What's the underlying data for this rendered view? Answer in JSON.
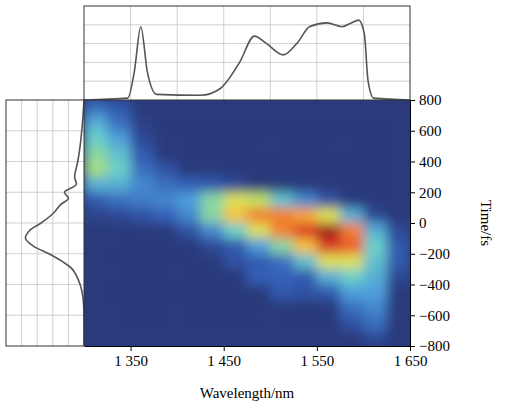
{
  "chart_data": [
    {
      "type": "heatmap",
      "xlabel": "Wavelength/nm",
      "ylabel": "Time/fs",
      "x": [
        1312.5,
        1337.5,
        1362.5,
        1387.5,
        1412.5,
        1437.5,
        1462.5,
        1487.5,
        1512.5,
        1537.5,
        1562.5,
        1587.5,
        1612.5,
        1637.5
      ],
      "y": [
        750,
        650,
        550,
        450,
        350,
        250,
        150,
        50,
        -50,
        -150,
        -250,
        -350,
        -450,
        -550,
        -650,
        -750
      ],
      "z": [
        [
          0.15,
          0.1,
          0,
          0,
          0,
          0,
          0,
          0,
          0,
          0,
          0,
          0,
          0,
          0
        ],
        [
          0.3,
          0.15,
          0.02,
          0,
          0,
          0,
          0,
          0,
          0,
          0,
          0,
          0,
          0,
          0
        ],
        [
          0.4,
          0.25,
          0.05,
          0,
          0,
          0,
          0,
          0,
          0,
          0,
          0,
          0,
          0,
          0
        ],
        [
          0.45,
          0.35,
          0.1,
          0,
          0,
          0,
          0,
          0,
          0,
          0,
          0,
          0,
          0,
          0
        ],
        [
          0.5,
          0.4,
          0.15,
          0.08,
          0,
          0,
          0,
          0,
          0,
          0,
          0,
          0,
          0,
          0
        ],
        [
          0.3,
          0.3,
          0.2,
          0.15,
          0.12,
          0.1,
          0.05,
          0,
          0,
          0,
          0,
          0,
          0,
          0
        ],
        [
          0.1,
          0.15,
          0.18,
          0.2,
          0.25,
          0.45,
          0.6,
          0.55,
          0.35,
          0.2,
          0.08,
          0,
          0,
          0
        ],
        [
          0.03,
          0.05,
          0.08,
          0.12,
          0.2,
          0.45,
          0.7,
          0.8,
          0.8,
          0.75,
          0.6,
          0.3,
          0.05,
          0
        ],
        [
          0,
          0,
          0,
          0,
          0.08,
          0.2,
          0.4,
          0.6,
          0.8,
          0.9,
          1.0,
          0.8,
          0.3,
          0.05
        ],
        [
          0,
          0,
          0,
          0,
          0,
          0.05,
          0.1,
          0.25,
          0.45,
          0.7,
          0.9,
          0.85,
          0.4,
          0.1
        ],
        [
          0,
          0,
          0,
          0,
          0,
          0,
          0.08,
          0.1,
          0.15,
          0.35,
          0.6,
          0.6,
          0.35,
          0.1
        ],
        [
          0,
          0,
          0,
          0,
          0,
          0,
          0,
          0.12,
          0.12,
          0.1,
          0.3,
          0.4,
          0.3,
          0.05
        ],
        [
          0,
          0,
          0,
          0,
          0,
          0,
          0,
          0,
          0.1,
          0.08,
          0.1,
          0.25,
          0.25,
          0
        ],
        [
          0,
          0,
          0,
          0,
          0,
          0,
          0,
          0,
          0,
          0,
          0,
          0.15,
          0.2,
          0
        ],
        [
          0,
          0,
          0,
          0,
          0,
          0,
          0,
          0,
          0,
          0,
          0,
          0.08,
          0.15,
          0
        ],
        [
          0,
          0,
          0,
          0,
          0,
          0,
          0,
          0,
          0,
          0,
          0,
          0,
          0.05,
          0
        ]
      ],
      "xlim": [
        1300,
        1650
      ],
      "ylim": [
        -800,
        800
      ],
      "xticks": [
        {
          "value": 1350,
          "label": "1 350"
        },
        {
          "value": 1450,
          "label": "1 450"
        },
        {
          "value": 1550,
          "label": "1 550"
        },
        {
          "value": 1650,
          "label": "1 650"
        }
      ],
      "yticks": [
        800,
        600,
        400,
        200,
        0,
        {
          "value": -200,
          "label": "−200"
        },
        {
          "value": -400,
          "label": "−400"
        },
        {
          "value": -600,
          "label": "−600"
        },
        {
          "value": -800,
          "label": "−800"
        }
      ]
    },
    {
      "type": "line",
      "x": [
        1300,
        1347,
        1354,
        1361,
        1368,
        1378,
        1425,
        1446,
        1467,
        1483,
        1496,
        1514,
        1530,
        1542,
        1561,
        1577,
        1587,
        1595,
        1601,
        1605,
        1611,
        1650
      ],
      "values": [
        0,
        0.02,
        0.3,
        0.78,
        0.3,
        0.06,
        0.05,
        0.12,
        0.4,
        0.68,
        0.6,
        0.48,
        0.62,
        0.78,
        0.82,
        0.78,
        0.82,
        0.85,
        0.7,
        0.2,
        0.02,
        0
      ],
      "color": "#555555",
      "xlim": [
        1300,
        1650
      ],
      "ylim": [
        0,
        1
      ],
      "xticks": [
        1350,
        1400,
        1450,
        1500,
        1550,
        1600
      ],
      "yticks": [
        0.2,
        0.4,
        0.6,
        0.8
      ],
      "grid": true,
      "tick_labels": false
    },
    {
      "type": "line",
      "y": [
        800,
        650,
        500,
        400,
        300,
        250,
        200,
        160,
        120,
        60,
        0,
        -50,
        -100,
        -150,
        -200,
        -250,
        -300,
        -400,
        -500,
        -650,
        -800
      ],
      "values": [
        0,
        0.02,
        0.05,
        0.08,
        0.12,
        0.1,
        0.25,
        0.2,
        0.3,
        0.4,
        0.55,
        0.7,
        0.75,
        0.65,
        0.45,
        0.28,
        0.15,
        0.05,
        0.01,
        0,
        0
      ],
      "color": "#555555",
      "xlim": [
        1,
        0
      ],
      "ylim": [
        -800,
        800
      ],
      "xticks": [
        0.2,
        0.4,
        0.6,
        0.8
      ],
      "yticks": [
        -600,
        -400,
        -200,
        0,
        200,
        400,
        600
      ],
      "grid": true,
      "tick_labels": false
    }
  ]
}
